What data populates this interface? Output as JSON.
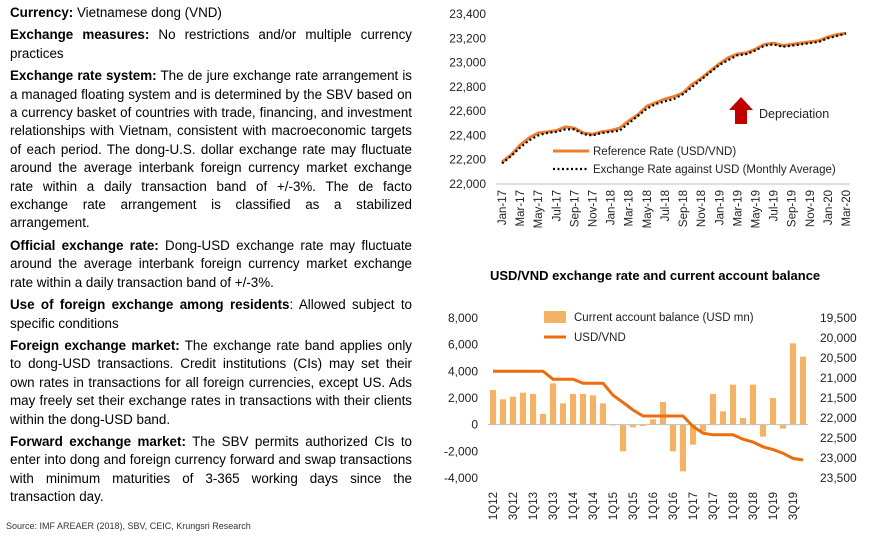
{
  "paragraphs": [
    {
      "label": "Currency:",
      "text": " Vietnamese dong (VND)"
    },
    {
      "label": "Exchange measures:",
      "text": " No restrictions and/or multiple currency practices"
    },
    {
      "label": "Exchange rate system:",
      "text": " The de jure exchange rate arrangement is a managed floating system and is determined by the SBV based on a currency basket of countries with trade, financing, and investment relationships with Vietnam, consistent with macroeconomic targets of each period. The dong-U.S. dollar exchange rate may fluctuate around the average interbank foreign currency market exchange rate within a daily transaction band of +/-3%. The de facto exchange rate arrangement is classified as a stabilized arrangement."
    },
    {
      "label": "Official exchange rate:",
      "text": " Dong-USD exchange rate may fluctuate around the average interbank foreign currency market exchange rate within a daily transaction band of +/-3%."
    },
    {
      "label": "Use of foreign exchange among residents",
      "text": ": Allowed subject to specific conditions"
    },
    {
      "label": "Foreign exchange market:",
      "text": " The exchange rate band applies only to dong-USD transactions. Credit institutions (CIs) may set their own rates in transactions for all foreign currencies, except US. Ads may freely set their exchange rates in transactions with their clients within the dong-USD band."
    },
    {
      "label": "Forward exchange market:",
      "text": " The SBV permits authorized CIs to enter into dong and foreign currency forward and swap transactions with minimum maturities of 3-365 working days since the transaction day."
    }
  ],
  "source": "Source: IMF AREAER (2018), SBV, CEIC, Krungsri Research",
  "chart_data": [
    {
      "type": "line",
      "title": "",
      "x": [
        "Jan-17",
        "Feb-17",
        "Mar-17",
        "Apr-17",
        "May-17",
        "Jun-17",
        "Jul-17",
        "Aug-17",
        "Sep-17",
        "Oct-17",
        "Nov-17",
        "Dec-17",
        "Jan-18",
        "Feb-18",
        "Mar-18",
        "Apr-18",
        "May-18",
        "Jun-18",
        "Jul-18",
        "Aug-18",
        "Sep-18",
        "Oct-18",
        "Nov-18",
        "Dec-18",
        "Jan-19",
        "Feb-19",
        "Mar-19",
        "Apr-19",
        "May-19",
        "Jun-19",
        "Jul-19",
        "Aug-19",
        "Sep-19",
        "Oct-19",
        "Nov-19",
        "Dec-19",
        "Jan-20",
        "Feb-20",
        "Mar-20"
      ],
      "x_tick_labels": [
        "Jan-17",
        "Mar-17",
        "May-17",
        "Jul-17",
        "Sep-17",
        "Nov-17",
        "Jan-18",
        "Mar-18",
        "May-18",
        "Jul-18",
        "Sep-18",
        "Nov-18",
        "Jan-19",
        "Mar-19",
        "May-19",
        "Jul-19",
        "Sep-19",
        "Nov-19",
        "Jan-20",
        "Mar-20"
      ],
      "y_ticks": [
        "22,000",
        "22,200",
        "22,400",
        "22,600",
        "22,800",
        "23,000",
        "23,200",
        "23,400"
      ],
      "ylim": [
        22000,
        23400
      ],
      "annotation": "Depreciation",
      "annotation_color": "#c00000",
      "legend_position": "bottom-right",
      "series": [
        {
          "name": "Reference Rate (USD/VND)",
          "color": "#ed7d31",
          "values": [
            22180,
            22240,
            22320,
            22380,
            22420,
            22430,
            22440,
            22470,
            22460,
            22420,
            22410,
            22430,
            22440,
            22460,
            22520,
            22570,
            22640,
            22670,
            22700,
            22720,
            22750,
            22820,
            22870,
            22930,
            22990,
            23040,
            23070,
            23080,
            23110,
            23150,
            23160,
            23140,
            23150,
            23160,
            23170,
            23180,
            23210,
            23230,
            23240
          ]
        },
        {
          "name": "Exchange Rate against USD (Monthly Average)",
          "color": "#000000",
          "values": [
            22170,
            22230,
            22300,
            22360,
            22400,
            22420,
            22430,
            22450,
            22450,
            22410,
            22400,
            22420,
            22430,
            22440,
            22500,
            22560,
            22620,
            22660,
            22680,
            22700,
            22740,
            22800,
            22860,
            22920,
            22980,
            23020,
            23060,
            23070,
            23100,
            23140,
            23150,
            23130,
            23140,
            23150,
            23160,
            23170,
            23200,
            23220,
            23240
          ]
        }
      ]
    },
    {
      "type": "bar",
      "title": "USD/VND exchange rate and current account balance",
      "x": [
        "1Q12",
        "2Q12",
        "3Q12",
        "4Q12",
        "1Q13",
        "2Q13",
        "3Q13",
        "4Q13",
        "1Q14",
        "2Q14",
        "3Q14",
        "4Q14",
        "1Q15",
        "2Q15",
        "3Q15",
        "4Q15",
        "1Q16",
        "2Q16",
        "3Q16",
        "4Q16",
        "1Q17",
        "2Q17",
        "3Q17",
        "4Q17",
        "1Q18",
        "2Q18",
        "3Q18",
        "4Q18",
        "1Q19",
        "2Q19",
        "3Q19",
        "4Q19"
      ],
      "x_tick_labels": [
        "1Q12",
        "3Q12",
        "1Q13",
        "3Q13",
        "1Q14",
        "3Q14",
        "1Q15",
        "3Q15",
        "1Q16",
        "3Q16",
        "1Q17",
        "3Q17",
        "1Q18",
        "3Q18",
        "1Q19",
        "3Q19"
      ],
      "y_left_ticks": [
        "8,000",
        "6,000",
        "4,000",
        "2,000",
        "0",
        "-2,000",
        "-4,000"
      ],
      "ylim_left": [
        -4000,
        8000
      ],
      "y_right_ticks": [
        "19,500",
        "20,000",
        "20,500",
        "21,000",
        "21,500",
        "22,000",
        "22,500",
        "23,000",
        "23,500"
      ],
      "ylim_right_inverted": [
        19500,
        23500
      ],
      "legend_position": "top",
      "series": [
        {
          "name": "Current account balance (USD mn)",
          "color": "#f4b266",
          "axis": "left",
          "kind": "bar",
          "values": [
            2600,
            1900,
            2100,
            2400,
            2300,
            800,
            3100,
            1600,
            2300,
            2300,
            2200,
            1600,
            0,
            -2000,
            -200,
            -100,
            400,
            1700,
            -2000,
            -3500,
            -1500,
            -500,
            2300,
            1000,
            3000,
            500,
            3000,
            -900,
            2000,
            -300,
            6100,
            5100
          ]
        },
        {
          "name": "USD/VND",
          "color": "#ed6c0d",
          "axis": "right",
          "kind": "line",
          "values": [
            20830,
            20830,
            20830,
            20830,
            20830,
            20830,
            21030,
            21030,
            21030,
            21130,
            21130,
            21130,
            21430,
            21610,
            21800,
            21950,
            21950,
            21950,
            21950,
            21950,
            22210,
            22380,
            22420,
            22420,
            22420,
            22530,
            22600,
            22720,
            22790,
            22880,
            23010,
            23050
          ]
        }
      ]
    }
  ]
}
